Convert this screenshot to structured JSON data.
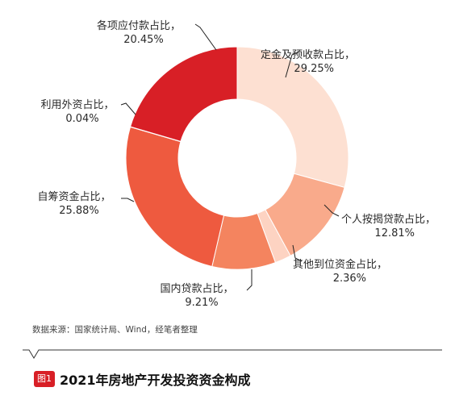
{
  "chart_data": {
    "type": "pie",
    "donut": true,
    "title": "2021年房地产开发投资资金构成",
    "figure_tag": "图1",
    "source": "数据来源：国家统计局、Wind，经笔者整理",
    "slices": [
      {
        "name": "定金及预收款占比，",
        "value": 29.25,
        "value_label": "29.25%",
        "color": "#fde0d2"
      },
      {
        "name": "个人按揭贷款占比，",
        "value": 12.81,
        "value_label": "12.81%",
        "color": "#f9aa8b"
      },
      {
        "name": "其他到位资金占比，",
        "value": 2.36,
        "value_label": "2.36%",
        "color": "#fdd3c2"
      },
      {
        "name": "国内贷款占比，",
        "value": 9.21,
        "value_label": "9.21%",
        "color": "#f4845f"
      },
      {
        "name": "自筹资金占比，",
        "value": 25.88,
        "value_label": "25.88%",
        "color": "#ee5a3f"
      },
      {
        "name": "利用外资占比，",
        "value": 0.04,
        "value_label": "0.04%",
        "color": "#e8452c"
      },
      {
        "name": "各项应付款占比，",
        "value": 20.45,
        "value_label": "20.45%",
        "color": "#d81f26"
      }
    ]
  }
}
